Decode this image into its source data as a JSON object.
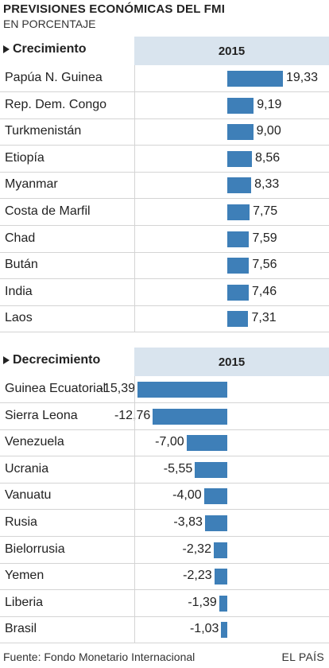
{
  "header": {
    "title": "PREVISIONES ECONÓMICAS DEL FMI",
    "subtitle": "EN PORCENTAJE"
  },
  "chart_data": [
    {
      "type": "bar",
      "title": "Crecimiento",
      "year": "2015",
      "categories": [
        "Papúa N. Guinea",
        "Rep. Dem. Congo",
        "Turkmenistán",
        "Etiopía",
        "Myanmar",
        "Costa de Marfil",
        "Chad",
        "Bután",
        "India",
        "Laos"
      ],
      "values": [
        19.33,
        9.19,
        9.0,
        8.56,
        8.33,
        7.75,
        7.59,
        7.56,
        7.46,
        7.31
      ],
      "labels": [
        "19,33",
        "9,19",
        "9,00",
        "8,56",
        "8,33",
        "7,75",
        "7,59",
        "7,56",
        "7,46",
        "7,31"
      ],
      "orientation": "horizontal",
      "color": "#3e7fb8"
    },
    {
      "type": "bar",
      "title": "Decrecimiento",
      "year": "2015",
      "categories": [
        "Guinea Ecuatorial",
        "Sierra Leona",
        "Venezuela",
        "Ucrania",
        "Vanuatu",
        "Rusia",
        "Bielorrusia",
        "Yemen",
        "Liberia",
        "Brasil"
      ],
      "values": [
        -15.39,
        -12.76,
        -7.0,
        -5.55,
        -4.0,
        -3.83,
        -2.32,
        -2.23,
        -1.39,
        -1.03
      ],
      "labels": [
        "-15,39",
        "-12,76",
        "-7,00",
        "-5,55",
        "-4,00",
        "-3,83",
        "-2,32",
        "-2,23",
        "-1,39",
        "-1,03"
      ],
      "orientation": "horizontal",
      "color": "#3e7fb8"
    }
  ],
  "footer": {
    "source": "Fuente: Fondo Monetario Internacional",
    "brand": "EL PAÍS"
  }
}
